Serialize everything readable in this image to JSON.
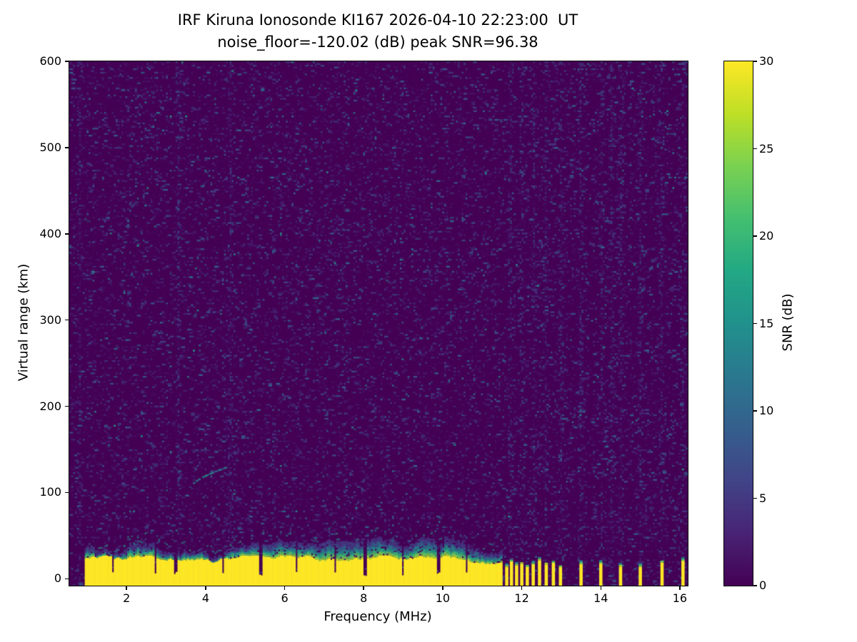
{
  "colors": {
    "background": "#ffffff",
    "text": "#000000"
  },
  "chart_data": {
    "type": "heatmap",
    "title": "IRF Kiruna Ionosonde KI167 2026-04-10 22:23:00  UT",
    "subtitle": "noise_floor=-120.02 (dB) peak SNR=96.38",
    "station": "KI167",
    "timestamp_ut": "2026-04-10 22:23:00",
    "noise_floor_db": -120.02,
    "peak_snr_db": 96.38,
    "xlabel": "Frequency (MHz)",
    "ylabel": "Virtual range (km)",
    "xlim": [
      0.55,
      16.2
    ],
    "ylim": [
      -8,
      600
    ],
    "xticks": [
      2,
      4,
      6,
      8,
      10,
      12,
      14,
      16
    ],
    "yticks": [
      0,
      100,
      200,
      300,
      400,
      500,
      600
    ],
    "grid": false,
    "colorbar": {
      "label": "SNR (dB)",
      "ticks": [
        0,
        5,
        10,
        15,
        20,
        25,
        30
      ],
      "vmin": 0,
      "vmax": 30,
      "colormap": "viridis",
      "colormap_stops": [
        "#440154",
        "#482475",
        "#414487",
        "#355f8d",
        "#2a788e",
        "#21918c",
        "#22a884",
        "#44bf70",
        "#7ad151",
        "#bddf26",
        "#fde725"
      ]
    },
    "ground_clutter": {
      "freq_start_mhz": 0.98,
      "freq_end_mhz": 11.52,
      "saturated_top_km": 24,
      "fringe_top_km": 42,
      "notch_freqs_mhz": [
        1.65,
        2.75,
        3.25,
        4.45,
        5.4,
        6.3,
        7.3,
        8.05,
        9.0,
        9.9,
        10.6
      ]
    },
    "pulsed_stripes_mhz": [
      11.62,
      11.74,
      11.87,
      12.0,
      12.14,
      12.29,
      12.45,
      12.62,
      12.8,
      12.98,
      13.5,
      14.0,
      14.5,
      15.0,
      15.55,
      16.08
    ],
    "rfi_columns_mhz": [
      0.82,
      3.3,
      4.62,
      11.74,
      12.0,
      12.29,
      12.62,
      12.98,
      13.5,
      14.0,
      14.28,
      14.5,
      15.0,
      15.55,
      16.08
    ],
    "echo_trace": {
      "freq_start_mhz": 3.55,
      "freq_end_mhz": 4.5,
      "range_start_km": 103,
      "range_end_km": 130
    }
  }
}
